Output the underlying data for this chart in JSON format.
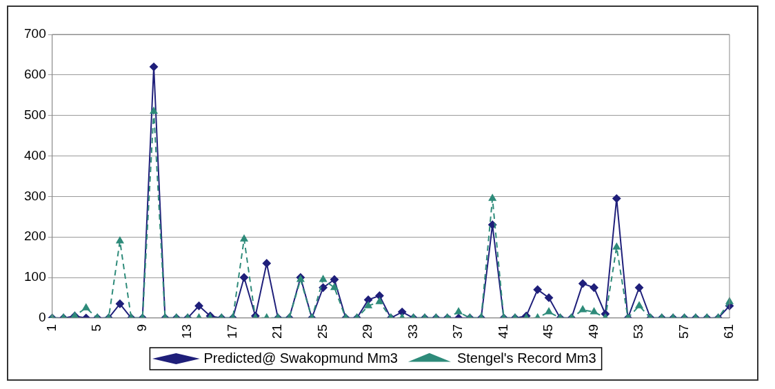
{
  "chart_data": {
    "type": "line",
    "categories": [
      "1",
      null,
      null,
      null,
      "5",
      null,
      null,
      null,
      "9",
      null,
      null,
      null,
      "13",
      null,
      null,
      null,
      "17",
      null,
      null,
      null,
      "21",
      null,
      null,
      null,
      "25",
      null,
      null,
      null,
      "29",
      null,
      null,
      null,
      "33",
      null,
      null,
      null,
      "37",
      null,
      null,
      null,
      "41",
      null,
      null,
      null,
      "45",
      null,
      null,
      null,
      "49",
      null,
      null,
      null,
      "53",
      null,
      null,
      null,
      "57",
      null,
      null,
      null,
      "61"
    ],
    "series": [
      {
        "name": "Predicted@ Swakopmund Mm3",
        "color": "#1f1f7a",
        "marker": "diamond",
        "line_style": "solid",
        "values": [
          0,
          0,
          5,
          0,
          0,
          0,
          35,
          0,
          0,
          620,
          0,
          0,
          0,
          30,
          5,
          0,
          0,
          100,
          5,
          135,
          0,
          0,
          100,
          0,
          75,
          95,
          0,
          0,
          45,
          55,
          0,
          15,
          0,
          0,
          0,
          0,
          0,
          0,
          0,
          230,
          0,
          0,
          5,
          70,
          50,
          0,
          0,
          85,
          75,
          10,
          295,
          0,
          75,
          0,
          0,
          0,
          0,
          0,
          0,
          0,
          30
        ]
      },
      {
        "name": "Stengel's Record Mm3",
        "color": "#2e8b7a",
        "marker": "triangle",
        "line_style": "dashed",
        "values": [
          0,
          0,
          5,
          25,
          0,
          0,
          190,
          0,
          0,
          510,
          0,
          0,
          0,
          0,
          0,
          0,
          0,
          195,
          0,
          0,
          0,
          0,
          95,
          0,
          95,
          75,
          0,
          0,
          30,
          40,
          0,
          0,
          0,
          0,
          0,
          0,
          15,
          0,
          0,
          295,
          0,
          0,
          0,
          0,
          15,
          0,
          0,
          20,
          15,
          0,
          175,
          0,
          30,
          0,
          0,
          0,
          0,
          0,
          0,
          0,
          40
        ]
      }
    ],
    "ylim": [
      0,
      700
    ],
    "yticks": [
      0,
      100,
      200,
      300,
      400,
      500,
      600,
      700
    ],
    "grid": "y",
    "legend": "bottom"
  }
}
